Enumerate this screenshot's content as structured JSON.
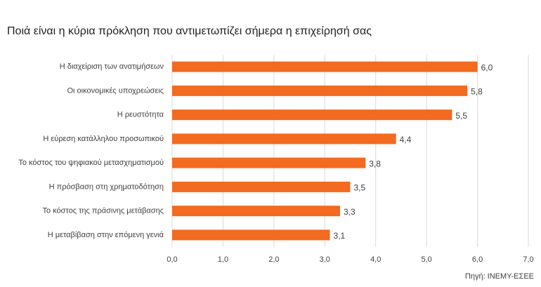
{
  "chart_data": {
    "type": "bar",
    "orientation": "horizontal",
    "title": "Ποιά είναι η κύρια πρόκληση που αντιμετωπίζει σήμερα η επιχείρησή σας",
    "source": "Πηγή: ΙΝΕΜΥ-ΕΣΕΕ",
    "categories": [
      "Η διαχείριση των ανατιμήσεων",
      "Οι οικονομικές υποχρεώσεις",
      "Η ρευστότητα",
      "Η εύρεση κατάλληλου προσωπικού",
      "Το κόστος του ψηφιακού μετασχηματισμού",
      "Η πρόσβαση στη χρηματοδότηση",
      "Το κόστος της πράσινης μετάβασης",
      "Η μεταβίβαση στην επόμενη γενιά"
    ],
    "values": [
      6.0,
      5.8,
      5.5,
      4.4,
      3.8,
      3.5,
      3.3,
      3.1
    ],
    "value_labels": [
      "6,0",
      "5,8",
      "5,5",
      "4,4",
      "3,8",
      "3,5",
      "3,3",
      "3,1"
    ],
    "color": "#f26b21",
    "xlim": [
      0,
      7
    ],
    "xticks": [
      {
        "value": 0,
        "label": "0,0"
      },
      {
        "value": 1,
        "label": "1,0"
      },
      {
        "value": 2,
        "label": "2,0"
      },
      {
        "value": 3,
        "label": "3,0"
      },
      {
        "value": 4,
        "label": "4,0"
      },
      {
        "value": 5,
        "label": "5,0"
      },
      {
        "value": 6,
        "label": "6,0"
      },
      {
        "value": 7,
        "label": "7,0"
      }
    ],
    "grid": true
  }
}
